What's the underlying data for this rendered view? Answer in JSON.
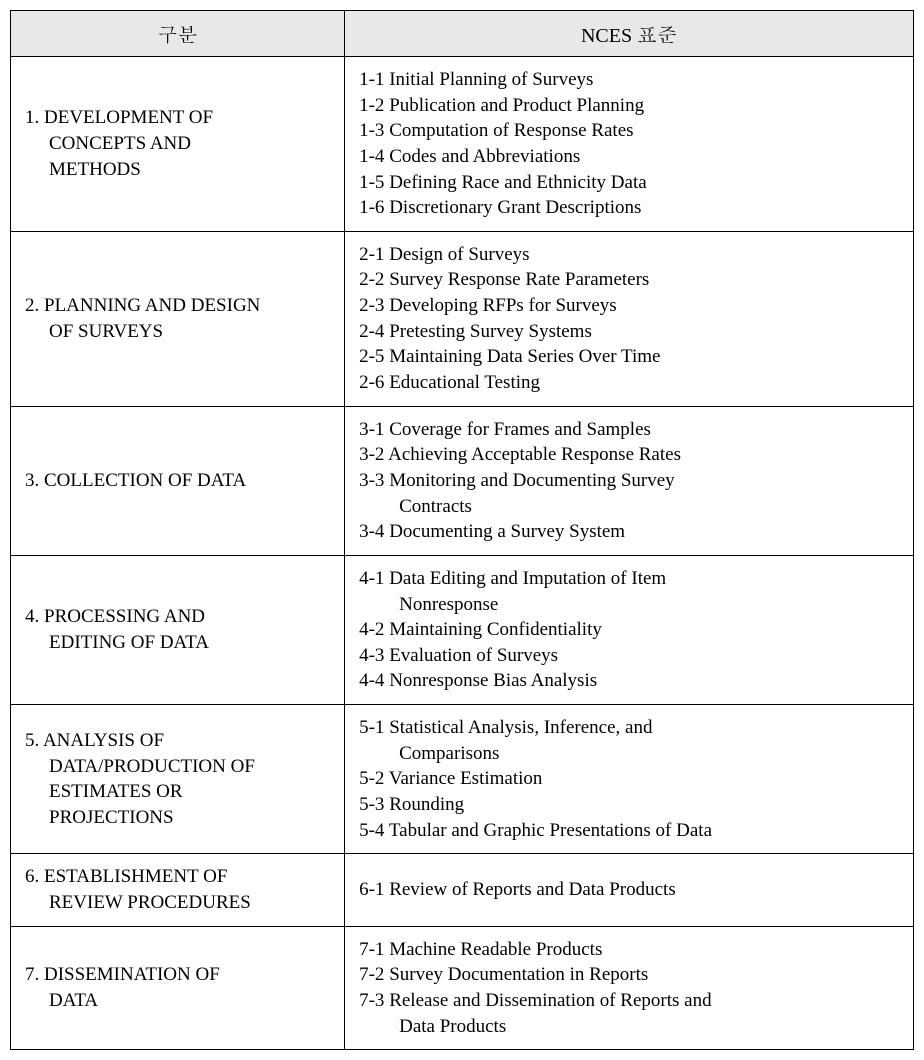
{
  "headers": {
    "category": "구분",
    "standard": "NCES 표준"
  },
  "sections": [
    {
      "num": "1.",
      "title_lines": [
        "DEVELOPMENT OF",
        "CONCEPTS AND",
        "METHODS"
      ],
      "items": [
        {
          "code": "1-1",
          "text": "Initial Planning of Surveys"
        },
        {
          "code": "1-2",
          "text": "Publication and Product Planning"
        },
        {
          "code": "1-3",
          "text": "Computation of Response Rates"
        },
        {
          "code": "1-4",
          "text": "Codes and Abbreviations"
        },
        {
          "code": "1-5",
          "text": "Defining Race and Ethnicity Data"
        },
        {
          "code": "1-6",
          "text": "Discretionary Grant Descriptions"
        }
      ]
    },
    {
      "num": "2.",
      "title_lines": [
        "PLANNING AND DESIGN",
        "OF SURVEYS"
      ],
      "items": [
        {
          "code": "2-1",
          "text": "Design of Surveys"
        },
        {
          "code": "2-2",
          "text": "Survey Response Rate Parameters"
        },
        {
          "code": "2-3",
          "text": "Developing RFPs for Surveys"
        },
        {
          "code": "2-4",
          "text": "Pretesting Survey Systems"
        },
        {
          "code": "2-5",
          "text": "Maintaining Data Series Over Time"
        },
        {
          "code": "2-6",
          "text": "Educational Testing"
        }
      ]
    },
    {
      "num": "3.",
      "title_lines": [
        "COLLECTION OF DATA"
      ],
      "items": [
        {
          "code": "3-1",
          "text": "Coverage for Frames and Samples"
        },
        {
          "code": "3-2",
          "text": "Achieving Acceptable Response Rates"
        },
        {
          "code": "3-3",
          "text": "Monitoring and Documenting Survey",
          "cont": "Contracts"
        },
        {
          "code": "3-4",
          "text": "Documenting a Survey System"
        }
      ]
    },
    {
      "num": "4.",
      "title_lines": [
        "PROCESSING AND",
        "EDITING OF DATA"
      ],
      "items": [
        {
          "code": "4-1",
          "text": "Data Editing and Imputation of Item",
          "cont": "Nonresponse"
        },
        {
          "code": "4-2",
          "text": "Maintaining Confidentiality"
        },
        {
          "code": "4-3",
          "text": "Evaluation of Surveys"
        },
        {
          "code": "4-4",
          "text": "Nonresponse Bias Analysis"
        }
      ]
    },
    {
      "num": "5.",
      "title_lines": [
        "ANALYSIS OF",
        "DATA/PRODUCTION OF",
        "ESTIMATES OR",
        "PROJECTIONS"
      ],
      "items": [
        {
          "code": "5-1",
          "text": "Statistical Analysis, Inference, and",
          "cont": "Comparisons"
        },
        {
          "code": "5-2",
          "text": "Variance Estimation"
        },
        {
          "code": "5-3",
          "text": "Rounding"
        },
        {
          "code": "5-4",
          "text": "Tabular and Graphic Presentations of Data"
        }
      ]
    },
    {
      "num": "6.",
      "title_lines": [
        "ESTABLISHMENT OF",
        "REVIEW PROCEDURES"
      ],
      "items": [
        {
          "code": "6-1",
          "text": "Review of Reports and Data Products"
        }
      ]
    },
    {
      "num": "7.",
      "title_lines": [
        "DISSEMINATION OF",
        "DATA"
      ],
      "items": [
        {
          "code": "7-1",
          "text": "Machine Readable Products"
        },
        {
          "code": "7-2",
          "text": "Survey Documentation in Reports"
        },
        {
          "code": "7-3",
          "text": "Release and Dissemination of Reports and",
          "cont": "Data Products"
        }
      ]
    }
  ]
}
